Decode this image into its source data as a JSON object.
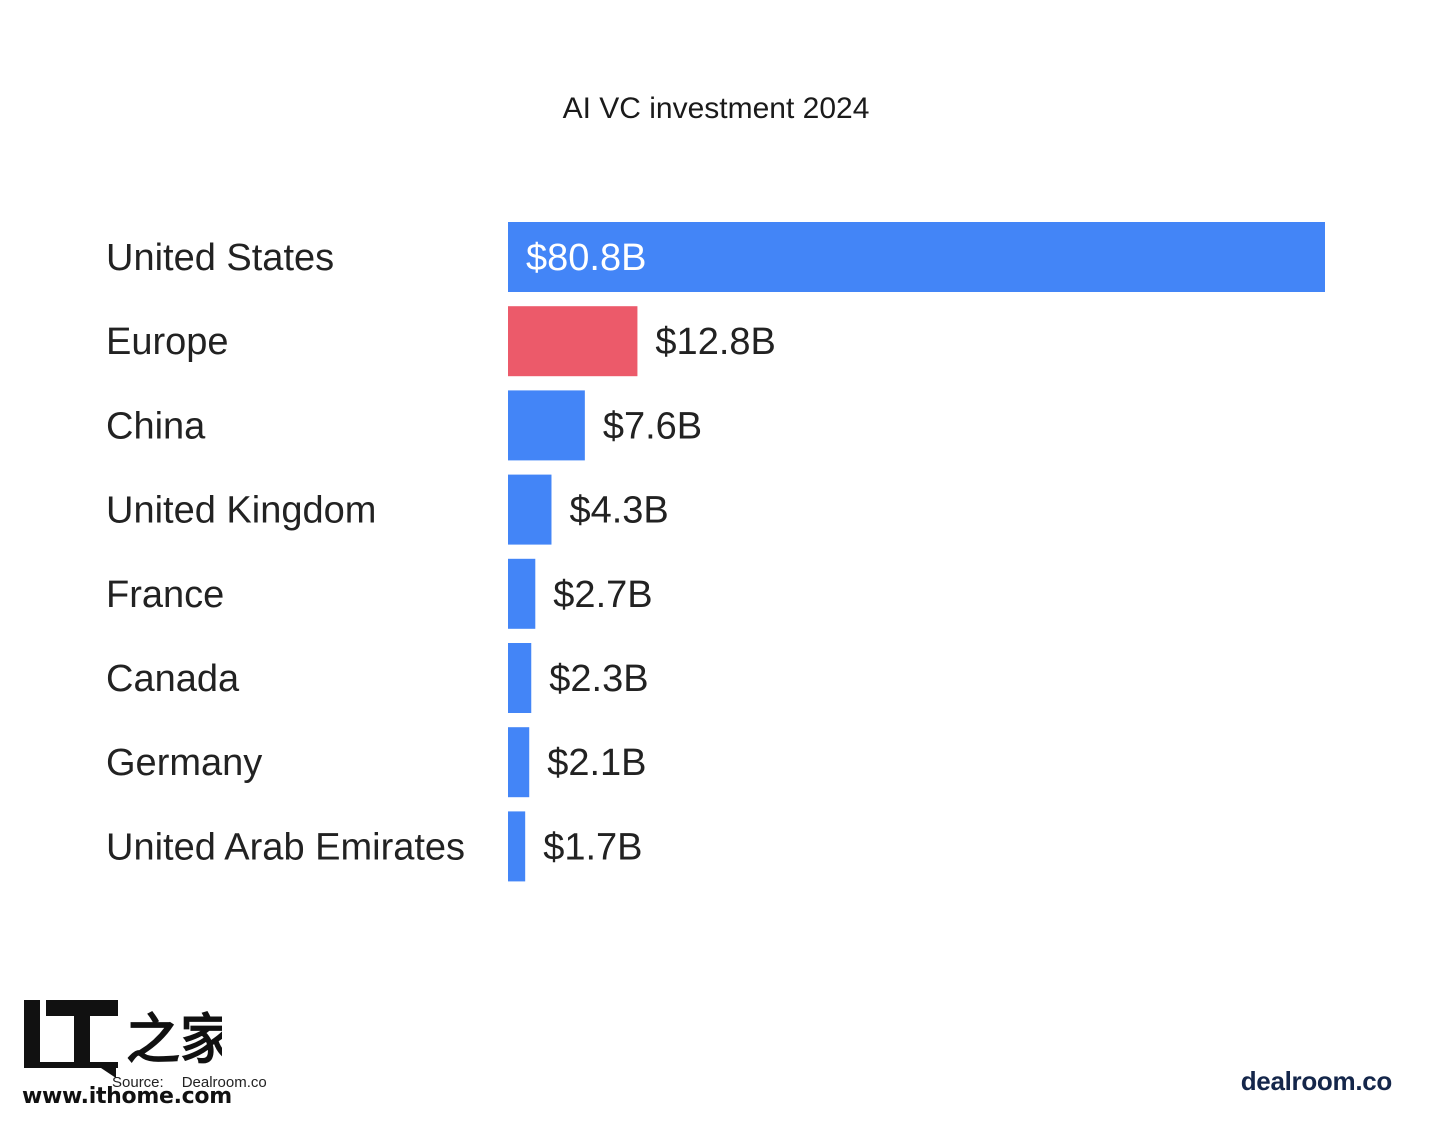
{
  "chart_data": {
    "type": "bar",
    "orientation": "horizontal",
    "title": "AI VC investment 2024",
    "categories": [
      "United States",
      "Europe",
      "China",
      "United Kingdom",
      "France",
      "Canada",
      "Germany",
      "United Arab Emirates"
    ],
    "values": [
      80.8,
      12.8,
      7.6,
      4.3,
      2.7,
      2.3,
      2.1,
      1.7
    ],
    "value_labels": [
      "$80.8B",
      "$12.8B",
      "$7.6B",
      "$4.3B",
      "$2.7B",
      "$2.3B",
      "$2.1B",
      "$1.7B"
    ],
    "unit": "$B",
    "xlim": [
      0,
      80.8
    ],
    "grid": false,
    "colors": {
      "default": "#4385F7",
      "highlight": "#EC5A6A",
      "highlight_category": "Europe"
    }
  },
  "source": {
    "label": "Source:",
    "value": "Dealroom.co"
  },
  "brand": "dealroom.co",
  "watermark": {
    "logo_text": "IT之家",
    "url": "www.ithome.com"
  }
}
